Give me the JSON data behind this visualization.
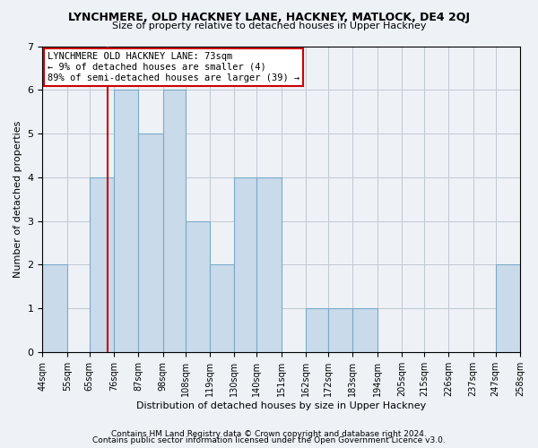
{
  "title": "LYNCHMERE, OLD HACKNEY LANE, HACKNEY, MATLOCK, DE4 2QJ",
  "subtitle": "Size of property relative to detached houses in Upper Hackney",
  "xlabel": "Distribution of detached houses by size in Upper Hackney",
  "ylabel": "Number of detached properties",
  "bar_color": "#c9daea",
  "bar_edgecolor": "#7aaac8",
  "reference_line_x": 73,
  "bins": [
    44,
    55,
    65,
    76,
    87,
    98,
    108,
    119,
    130,
    140,
    151,
    162,
    172,
    183,
    194,
    205,
    215,
    226,
    237,
    247,
    258
  ],
  "counts": [
    2,
    0,
    4,
    6,
    5,
    6,
    3,
    2,
    4,
    4,
    0,
    1,
    1,
    1,
    0,
    0,
    0,
    0,
    0,
    2,
    0
  ],
  "tick_labels": [
    "44sqm",
    "55sqm",
    "65sqm",
    "76sqm",
    "87sqm",
    "98sqm",
    "108sqm",
    "119sqm",
    "130sqm",
    "140sqm",
    "151sqm",
    "162sqm",
    "172sqm",
    "183sqm",
    "194sqm",
    "205sqm",
    "215sqm",
    "226sqm",
    "237sqm",
    "247sqm",
    "258sqm"
  ],
  "ylim": [
    0,
    7
  ],
  "annotation_text": "LYNCHMERE OLD HACKNEY LANE: 73sqm\n← 9% of detached houses are smaller (4)\n89% of semi-detached houses are larger (39) →",
  "ref_line_color": "#cc0000",
  "annotation_box_edgecolor": "#cc0000",
  "footer1": "Contains HM Land Registry data © Crown copyright and database right 2024.",
  "footer2": "Contains public sector information licensed under the Open Government Licence v3.0.",
  "background_color": "#eef2f7",
  "plot_bg_color": "#eef2f7",
  "grid_color": "#c0c8d0"
}
